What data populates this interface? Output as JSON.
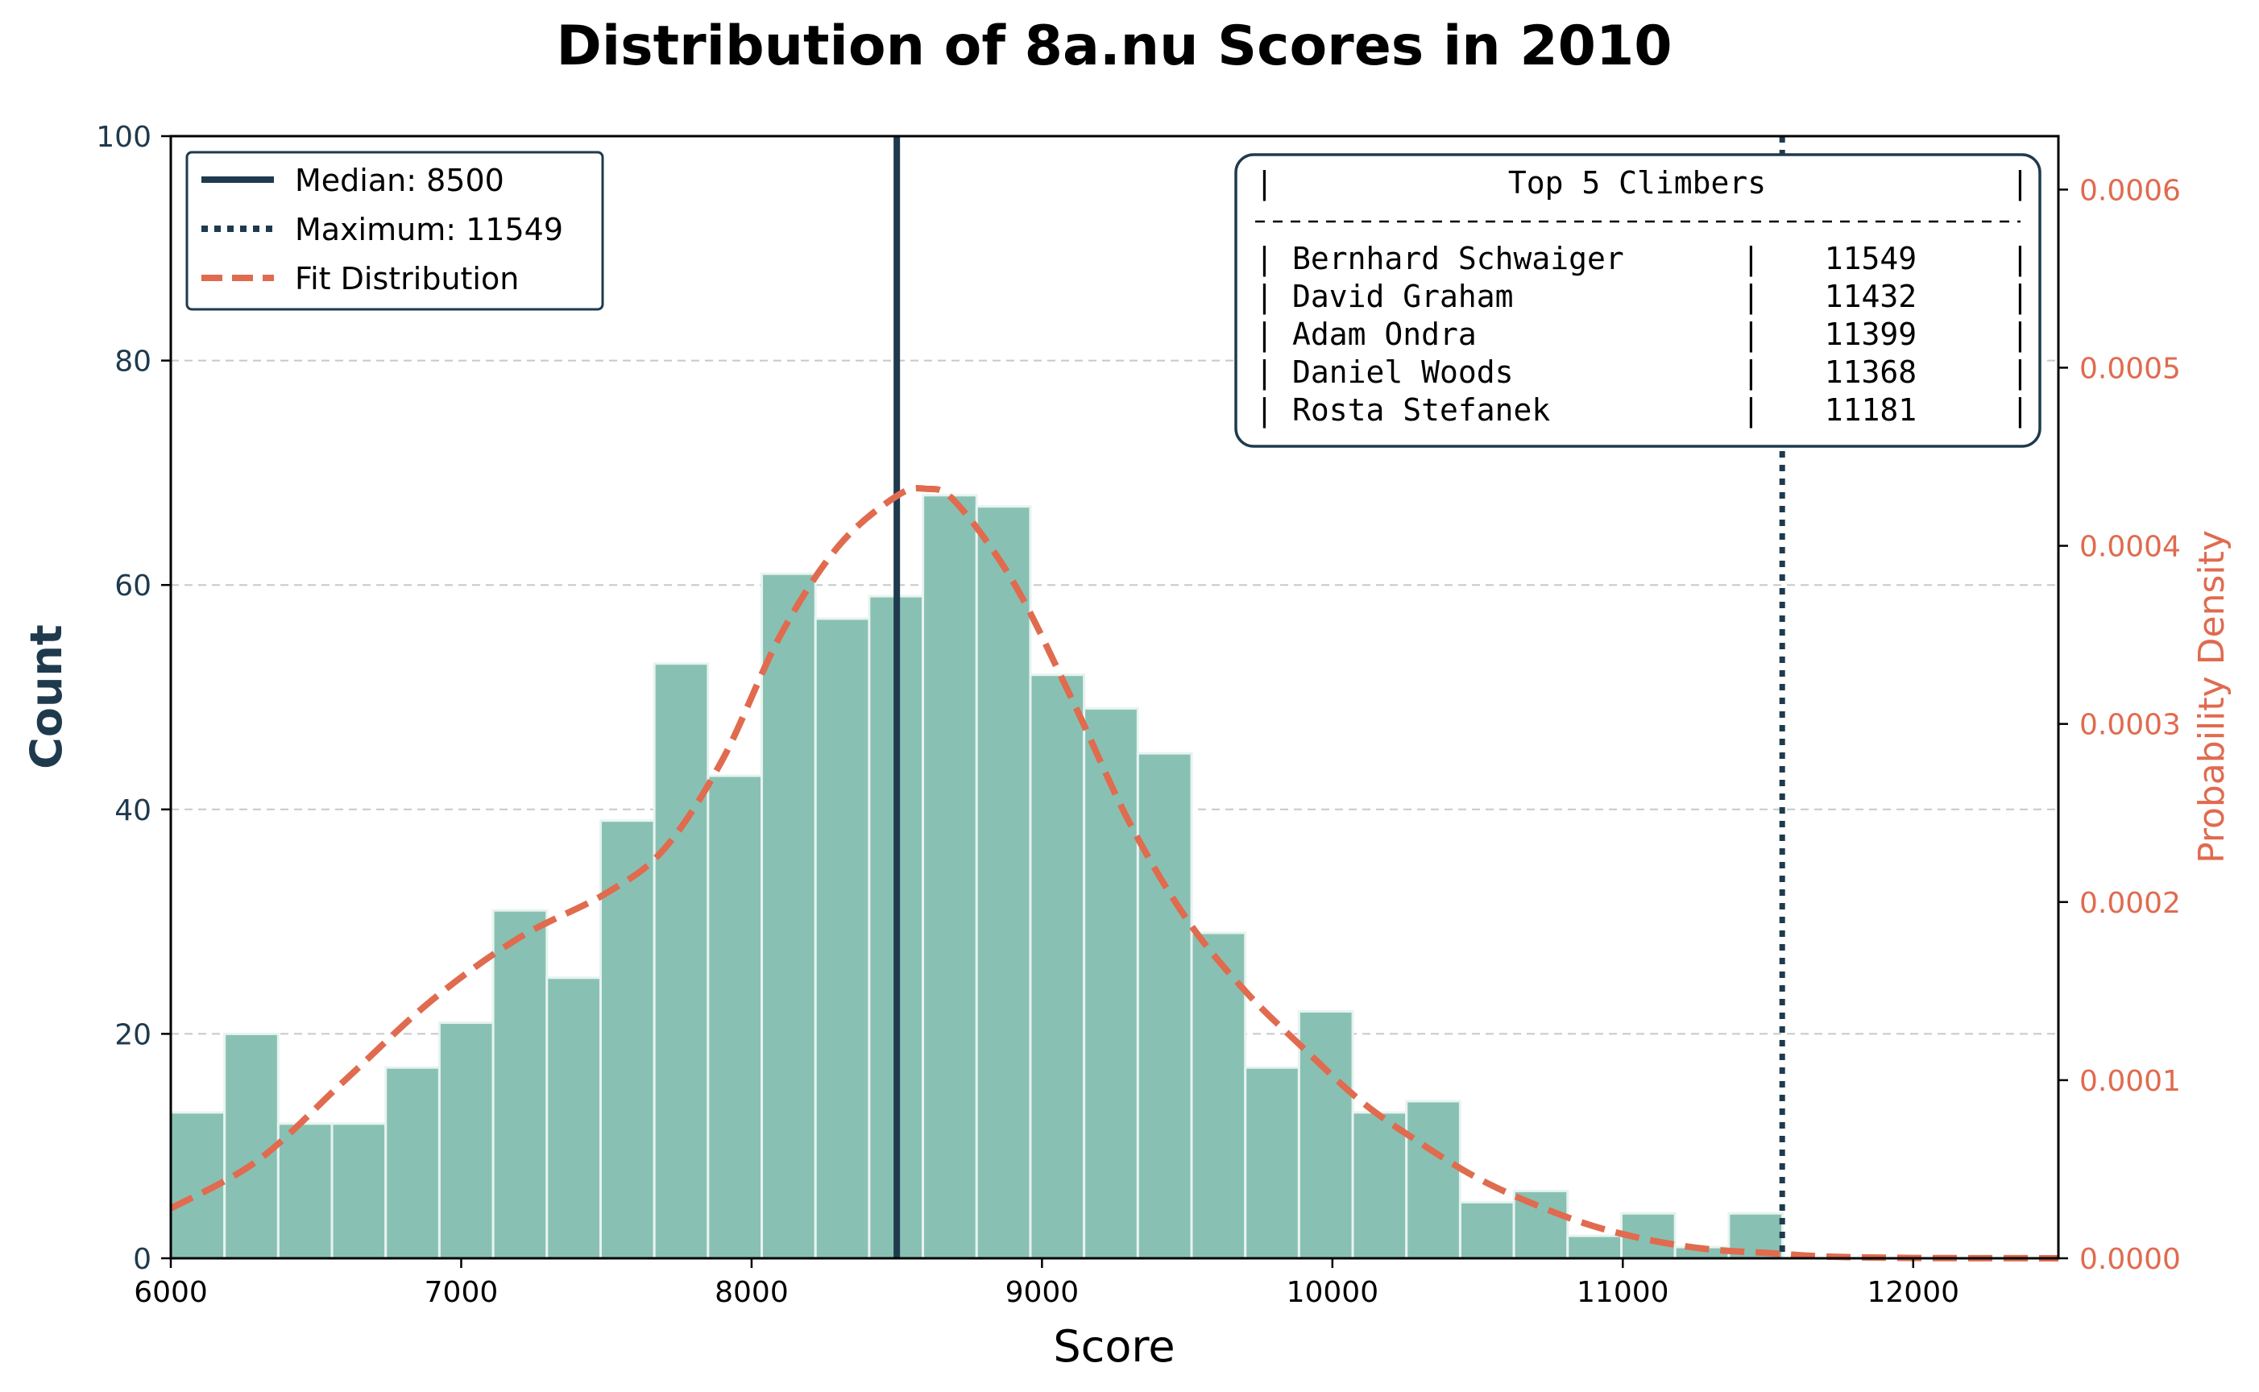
{
  "chart_data": {
    "type": "bar",
    "title": "Distribution of 8a.nu Scores in 2010",
    "xlabel": "Score",
    "ylabel": "Count",
    "y2label": "Probability Density",
    "xlim": [
      6000,
      12500
    ],
    "ylim": [
      0,
      100
    ],
    "y2lim": [
      0,
      0.00063
    ],
    "xticks": [
      "6000",
      "7000",
      "8000",
      "9000",
      "10000",
      "11000",
      "12000"
    ],
    "yticks": [
      "0",
      "20",
      "40",
      "60",
      "80",
      "100"
    ],
    "y2ticks": [
      "0.0000",
      "0.0001",
      "0.0002",
      "0.0003",
      "0.0004",
      "0.0005",
      "0.0006"
    ],
    "grid": "y dashed",
    "bin_width": 185,
    "bins": [
      {
        "x": 6000,
        "count": 13
      },
      {
        "x": 6185,
        "count": 20
      },
      {
        "x": 6370,
        "count": 12
      },
      {
        "x": 6555,
        "count": 12
      },
      {
        "x": 6740,
        "count": 17
      },
      {
        "x": 6925,
        "count": 21
      },
      {
        "x": 7110,
        "count": 31
      },
      {
        "x": 7295,
        "count": 25
      },
      {
        "x": 7480,
        "count": 39
      },
      {
        "x": 7665,
        "count": 53
      },
      {
        "x": 7850,
        "count": 43
      },
      {
        "x": 8035,
        "count": 61
      },
      {
        "x": 8220,
        "count": 57
      },
      {
        "x": 8405,
        "count": 59
      },
      {
        "x": 8590,
        "count": 68
      },
      {
        "x": 8775,
        "count": 67
      },
      {
        "x": 8960,
        "count": 52
      },
      {
        "x": 9145,
        "count": 49
      },
      {
        "x": 9330,
        "count": 45
      },
      {
        "x": 9515,
        "count": 29
      },
      {
        "x": 9700,
        "count": 17
      },
      {
        "x": 9885,
        "count": 22
      },
      {
        "x": 10070,
        "count": 13
      },
      {
        "x": 10255,
        "count": 14
      },
      {
        "x": 10440,
        "count": 5
      },
      {
        "x": 10625,
        "count": 6
      },
      {
        "x": 10810,
        "count": 2
      },
      {
        "x": 10995,
        "count": 4
      },
      {
        "x": 11180,
        "count": 1
      },
      {
        "x": 11365,
        "count": 4
      }
    ],
    "fit_curve": {
      "name": "Fit Distribution",
      "x": [
        6000,
        6300,
        6600,
        6900,
        7200,
        7500,
        7700,
        7900,
        8100,
        8300,
        8500,
        8600,
        8700,
        8900,
        9100,
        9300,
        9500,
        9700,
        9900,
        10100,
        10300,
        10500,
        10700,
        10900,
        11100,
        11300,
        11500,
        11700,
        12000,
        12500
      ],
      "density": [
        2.8e-05,
        5.5e-05,
        0.0001,
        0.000145,
        0.00018,
        0.000205,
        0.00023,
        0.00028,
        0.00035,
        0.0004,
        0.000428,
        0.000432,
        0.000425,
        0.00038,
        0.000315,
        0.000245,
        0.00019,
        0.00015,
        0.000118,
        8.8e-05,
        6.5e-05,
        4.5e-05,
        3e-05,
        1.8e-05,
        1e-05,
        5e-06,
        3e-06,
        1e-06,
        2e-07,
        0.0
      ]
    },
    "median": {
      "label": "Median: 8500",
      "value": 8500
    },
    "maximum": {
      "label": "Maximum: 11549",
      "value": 11549
    },
    "legend_placement": "top-left",
    "top_climbers": {
      "title": "Top 5 Climbers",
      "placement": "top-right",
      "rows": [
        {
          "name": "Bernhard Schwaiger",
          "score": "11549"
        },
        {
          "name": "David Graham",
          "score": "11432"
        },
        {
          "name": "Adam Ondra",
          "score": "11399"
        },
        {
          "name": "Daniel Woods",
          "score": "11368"
        },
        {
          "name": "Rosta Stefanek",
          "score": "11181"
        }
      ]
    },
    "colors": {
      "bars": "#88c1b3",
      "bar_edge": "#e8f3f0",
      "dark": "#1f3a4d",
      "accent": "#e06b4f",
      "grid": "#c8c8c8"
    }
  }
}
